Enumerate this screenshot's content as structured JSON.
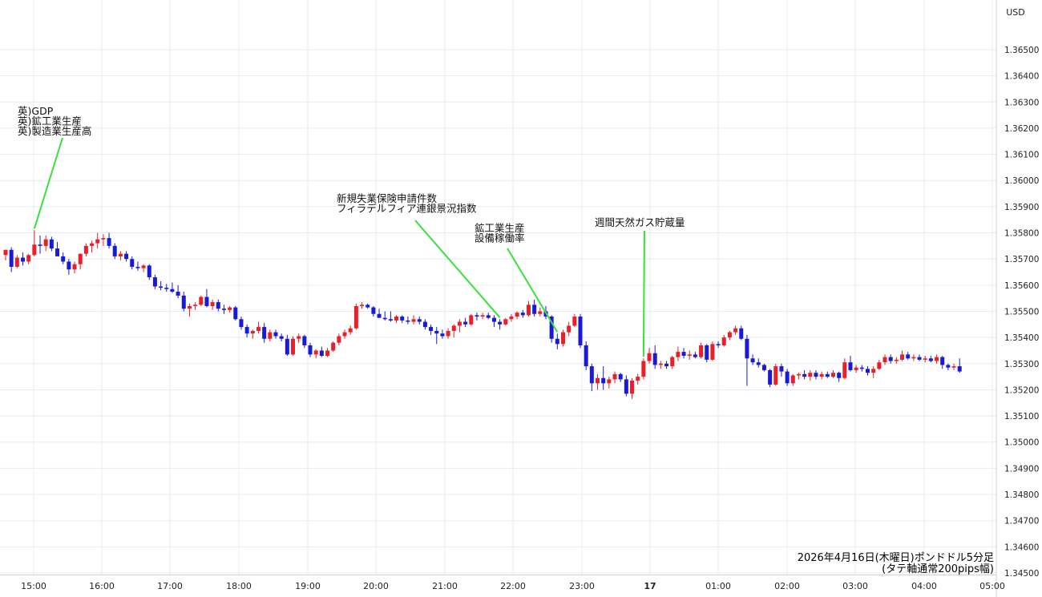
{
  "chart_data": {
    "type": "candlestick",
    "currency_label": "USD",
    "caption": [
      "2026年4月16日(木曜日)ポンドドル5分足",
      "(タテ軸通常200pips幅)"
    ],
    "ylim": [
      1.345,
      1.3665
    ],
    "y_ticks": [
      "1.36500",
      "1.36400",
      "1.36300",
      "1.36200",
      "1.36100",
      "1.36000",
      "1.35900",
      "1.35800",
      "1.35700",
      "1.35600",
      "1.35500",
      "1.35400",
      "1.35300",
      "1.35200",
      "1.35100",
      "1.35000",
      "1.34900",
      "1.34800",
      "1.34700",
      "1.34600",
      "1.34500"
    ],
    "x_ticks": [
      "15:00",
      "16:00",
      "17:00",
      "18:00",
      "19:00",
      "20:00",
      "21:00",
      "22:00",
      "23:00",
      "17",
      "01:00",
      "02:00",
      "03:00",
      "04:00",
      "05:00"
    ],
    "up_color": "#e8202a",
    "down_color": "#1a1ad6",
    "annotation_color": "#3be03b",
    "candles": [
      {
        "o": 1.35715,
        "h": 1.35735,
        "l": 1.35695,
        "c": 1.35735
      },
      {
        "o": 1.35735,
        "h": 1.35745,
        "l": 1.3565,
        "c": 1.3567
      },
      {
        "o": 1.3567,
        "h": 1.35715,
        "l": 1.35665,
        "c": 1.35705
      },
      {
        "o": 1.35705,
        "h": 1.35725,
        "l": 1.35675,
        "c": 1.3569
      },
      {
        "o": 1.3569,
        "h": 1.3572,
        "l": 1.3568,
        "c": 1.35715
      },
      {
        "o": 1.35715,
        "h": 1.3581,
        "l": 1.3571,
        "c": 1.35755
      },
      {
        "o": 1.35755,
        "h": 1.3579,
        "l": 1.3572,
        "c": 1.3575
      },
      {
        "o": 1.3575,
        "h": 1.3579,
        "l": 1.3573,
        "c": 1.35775
      },
      {
        "o": 1.35775,
        "h": 1.35785,
        "l": 1.3573,
        "c": 1.3574
      },
      {
        "o": 1.3574,
        "h": 1.35765,
        "l": 1.3572,
        "c": 1.3571
      },
      {
        "o": 1.3571,
        "h": 1.35725,
        "l": 1.3568,
        "c": 1.3569
      },
      {
        "o": 1.3569,
        "h": 1.357,
        "l": 1.3564,
        "c": 1.3566
      },
      {
        "o": 1.3566,
        "h": 1.3569,
        "l": 1.35645,
        "c": 1.3568
      },
      {
        "o": 1.3568,
        "h": 1.3572,
        "l": 1.3566,
        "c": 1.3572
      },
      {
        "o": 1.3572,
        "h": 1.3576,
        "l": 1.3571,
        "c": 1.3575
      },
      {
        "o": 1.3575,
        "h": 1.3577,
        "l": 1.35725,
        "c": 1.3576
      },
      {
        "o": 1.3576,
        "h": 1.358,
        "l": 1.3574,
        "c": 1.35775
      },
      {
        "o": 1.35775,
        "h": 1.35795,
        "l": 1.3575,
        "c": 1.3578
      },
      {
        "o": 1.3578,
        "h": 1.358,
        "l": 1.3574,
        "c": 1.3575
      },
      {
        "o": 1.3575,
        "h": 1.3576,
        "l": 1.357,
        "c": 1.3571
      },
      {
        "o": 1.3571,
        "h": 1.3573,
        "l": 1.35695,
        "c": 1.3572
      },
      {
        "o": 1.3572,
        "h": 1.3573,
        "l": 1.3569,
        "c": 1.357
      },
      {
        "o": 1.357,
        "h": 1.3571,
        "l": 1.3566,
        "c": 1.3567
      },
      {
        "o": 1.3567,
        "h": 1.3569,
        "l": 1.35655,
        "c": 1.35665
      },
      {
        "o": 1.35665,
        "h": 1.3568,
        "l": 1.3565,
        "c": 1.35675
      },
      {
        "o": 1.35675,
        "h": 1.3568,
        "l": 1.3562,
        "c": 1.3563
      },
      {
        "o": 1.3563,
        "h": 1.3564,
        "l": 1.35585,
        "c": 1.35595
      },
      {
        "o": 1.35595,
        "h": 1.35615,
        "l": 1.3558,
        "c": 1.3559
      },
      {
        "o": 1.3559,
        "h": 1.35605,
        "l": 1.35575,
        "c": 1.35585
      },
      {
        "o": 1.35585,
        "h": 1.3561,
        "l": 1.3557,
        "c": 1.35575
      },
      {
        "o": 1.35575,
        "h": 1.356,
        "l": 1.3555,
        "c": 1.3556
      },
      {
        "o": 1.3556,
        "h": 1.35575,
        "l": 1.355,
        "c": 1.3551
      },
      {
        "o": 1.3551,
        "h": 1.3553,
        "l": 1.3548,
        "c": 1.3552
      },
      {
        "o": 1.3552,
        "h": 1.35535,
        "l": 1.35505,
        "c": 1.35525
      },
      {
        "o": 1.35525,
        "h": 1.3556,
        "l": 1.3552,
        "c": 1.35555
      },
      {
        "o": 1.35555,
        "h": 1.35585,
        "l": 1.35515,
        "c": 1.3552
      },
      {
        "o": 1.3552,
        "h": 1.35545,
        "l": 1.35505,
        "c": 1.35535
      },
      {
        "o": 1.35535,
        "h": 1.35545,
        "l": 1.355,
        "c": 1.3551
      },
      {
        "o": 1.3551,
        "h": 1.35525,
        "l": 1.3549,
        "c": 1.35505
      },
      {
        "o": 1.35505,
        "h": 1.3552,
        "l": 1.35495,
        "c": 1.35515
      },
      {
        "o": 1.35515,
        "h": 1.3552,
        "l": 1.35465,
        "c": 1.3547
      },
      {
        "o": 1.3547,
        "h": 1.3548,
        "l": 1.3543,
        "c": 1.3544
      },
      {
        "o": 1.3544,
        "h": 1.3545,
        "l": 1.354,
        "c": 1.35415
      },
      {
        "o": 1.35415,
        "h": 1.3543,
        "l": 1.35395,
        "c": 1.35425
      },
      {
        "o": 1.35425,
        "h": 1.3546,
        "l": 1.35415,
        "c": 1.3544
      },
      {
        "o": 1.3544,
        "h": 1.35455,
        "l": 1.3538,
        "c": 1.35395
      },
      {
        "o": 1.35395,
        "h": 1.3543,
        "l": 1.35385,
        "c": 1.3542
      },
      {
        "o": 1.3542,
        "h": 1.3543,
        "l": 1.35395,
        "c": 1.35405
      },
      {
        "o": 1.35405,
        "h": 1.35415,
        "l": 1.35385,
        "c": 1.35395
      },
      {
        "o": 1.35395,
        "h": 1.3541,
        "l": 1.3533,
        "c": 1.35335
      },
      {
        "o": 1.35335,
        "h": 1.35405,
        "l": 1.3533,
        "c": 1.35395
      },
      {
        "o": 1.35395,
        "h": 1.35415,
        "l": 1.3538,
        "c": 1.35405
      },
      {
        "o": 1.35405,
        "h": 1.3541,
        "l": 1.3536,
        "c": 1.3537
      },
      {
        "o": 1.3537,
        "h": 1.3538,
        "l": 1.35325,
        "c": 1.35335
      },
      {
        "o": 1.35335,
        "h": 1.35355,
        "l": 1.3532,
        "c": 1.3535
      },
      {
        "o": 1.3535,
        "h": 1.35365,
        "l": 1.35325,
        "c": 1.3533
      },
      {
        "o": 1.3533,
        "h": 1.3536,
        "l": 1.35325,
        "c": 1.3535
      },
      {
        "o": 1.3535,
        "h": 1.35385,
        "l": 1.35345,
        "c": 1.3538
      },
      {
        "o": 1.3538,
        "h": 1.35415,
        "l": 1.3537,
        "c": 1.35405
      },
      {
        "o": 1.35405,
        "h": 1.3543,
        "l": 1.35395,
        "c": 1.3542
      },
      {
        "o": 1.3542,
        "h": 1.35445,
        "l": 1.3541,
        "c": 1.35435
      },
      {
        "o": 1.35435,
        "h": 1.3553,
        "l": 1.3543,
        "c": 1.3552
      },
      {
        "o": 1.3552,
        "h": 1.35535,
        "l": 1.3551,
        "c": 1.35525
      },
      {
        "o": 1.35525,
        "h": 1.3553,
        "l": 1.3551,
        "c": 1.35515
      },
      {
        "o": 1.35515,
        "h": 1.3552,
        "l": 1.3548,
        "c": 1.3549
      },
      {
        "o": 1.3549,
        "h": 1.3551,
        "l": 1.35475,
        "c": 1.35475
      },
      {
        "o": 1.35475,
        "h": 1.355,
        "l": 1.35465,
        "c": 1.3547
      },
      {
        "o": 1.3547,
        "h": 1.355,
        "l": 1.3546,
        "c": 1.35465
      },
      {
        "o": 1.35465,
        "h": 1.35485,
        "l": 1.35455,
        "c": 1.3548
      },
      {
        "o": 1.3548,
        "h": 1.35485,
        "l": 1.35455,
        "c": 1.35465
      },
      {
        "o": 1.35465,
        "h": 1.3548,
        "l": 1.3545,
        "c": 1.3546
      },
      {
        "o": 1.3546,
        "h": 1.35485,
        "l": 1.3545,
        "c": 1.3547
      },
      {
        "o": 1.3547,
        "h": 1.3548,
        "l": 1.3545,
        "c": 1.3546
      },
      {
        "o": 1.3546,
        "h": 1.3547,
        "l": 1.3543,
        "c": 1.3544
      },
      {
        "o": 1.3544,
        "h": 1.3545,
        "l": 1.3541,
        "c": 1.35425
      },
      {
        "o": 1.35425,
        "h": 1.3544,
        "l": 1.35375,
        "c": 1.35415
      },
      {
        "o": 1.35415,
        "h": 1.3543,
        "l": 1.35395,
        "c": 1.35405
      },
      {
        "o": 1.35405,
        "h": 1.35435,
        "l": 1.35395,
        "c": 1.35425
      },
      {
        "o": 1.35425,
        "h": 1.3545,
        "l": 1.354,
        "c": 1.35445
      },
      {
        "o": 1.35445,
        "h": 1.3547,
        "l": 1.3542,
        "c": 1.3546
      },
      {
        "o": 1.3546,
        "h": 1.35475,
        "l": 1.3544,
        "c": 1.3545
      },
      {
        "o": 1.3545,
        "h": 1.3549,
        "l": 1.35445,
        "c": 1.35485
      },
      {
        "o": 1.35485,
        "h": 1.35495,
        "l": 1.35465,
        "c": 1.3548
      },
      {
        "o": 1.3548,
        "h": 1.35495,
        "l": 1.3547,
        "c": 1.35485
      },
      {
        "o": 1.35485,
        "h": 1.35495,
        "l": 1.3547,
        "c": 1.35475
      },
      {
        "o": 1.35475,
        "h": 1.35485,
        "l": 1.3544,
        "c": 1.3546
      },
      {
        "o": 1.3546,
        "h": 1.3547,
        "l": 1.3543,
        "c": 1.3545
      },
      {
        "o": 1.3545,
        "h": 1.35475,
        "l": 1.35445,
        "c": 1.3547
      },
      {
        "o": 1.3547,
        "h": 1.3549,
        "l": 1.3546,
        "c": 1.3548
      },
      {
        "o": 1.3548,
        "h": 1.355,
        "l": 1.3547,
        "c": 1.35495
      },
      {
        "o": 1.35495,
        "h": 1.35505,
        "l": 1.35475,
        "c": 1.35485
      },
      {
        "o": 1.35485,
        "h": 1.3554,
        "l": 1.3548,
        "c": 1.35525
      },
      {
        "o": 1.35525,
        "h": 1.35545,
        "l": 1.3548,
        "c": 1.3549
      },
      {
        "o": 1.3549,
        "h": 1.35515,
        "l": 1.3548,
        "c": 1.355
      },
      {
        "o": 1.355,
        "h": 1.3552,
        "l": 1.3547,
        "c": 1.3548
      },
      {
        "o": 1.3548,
        "h": 1.35485,
        "l": 1.3538,
        "c": 1.35395
      },
      {
        "o": 1.35395,
        "h": 1.35415,
        "l": 1.35355,
        "c": 1.35375
      },
      {
        "o": 1.35375,
        "h": 1.3543,
        "l": 1.35365,
        "c": 1.3542
      },
      {
        "o": 1.3542,
        "h": 1.3546,
        "l": 1.35405,
        "c": 1.35445
      },
      {
        "o": 1.35445,
        "h": 1.3549,
        "l": 1.3544,
        "c": 1.3548
      },
      {
        "o": 1.3548,
        "h": 1.3549,
        "l": 1.3536,
        "c": 1.3537
      },
      {
        "o": 1.3537,
        "h": 1.35385,
        "l": 1.35275,
        "c": 1.3529
      },
      {
        "o": 1.3529,
        "h": 1.353,
        "l": 1.35195,
        "c": 1.35225
      },
      {
        "o": 1.35225,
        "h": 1.3526,
        "l": 1.352,
        "c": 1.35245
      },
      {
        "o": 1.35245,
        "h": 1.3529,
        "l": 1.352,
        "c": 1.35225
      },
      {
        "o": 1.35225,
        "h": 1.3525,
        "l": 1.35205,
        "c": 1.3524
      },
      {
        "o": 1.3524,
        "h": 1.3527,
        "l": 1.35225,
        "c": 1.3526
      },
      {
        "o": 1.3526,
        "h": 1.35265,
        "l": 1.3523,
        "c": 1.3524
      },
      {
        "o": 1.3524,
        "h": 1.35255,
        "l": 1.35175,
        "c": 1.35185
      },
      {
        "o": 1.35185,
        "h": 1.35245,
        "l": 1.35165,
        "c": 1.35235
      },
      {
        "o": 1.35235,
        "h": 1.3526,
        "l": 1.3522,
        "c": 1.3525
      },
      {
        "o": 1.3525,
        "h": 1.3532,
        "l": 1.3524,
        "c": 1.3531
      },
      {
        "o": 1.3531,
        "h": 1.3536,
        "l": 1.353,
        "c": 1.3534
      },
      {
        "o": 1.3534,
        "h": 1.3537,
        "l": 1.3528,
        "c": 1.35295
      },
      {
        "o": 1.35295,
        "h": 1.3531,
        "l": 1.3528,
        "c": 1.353
      },
      {
        "o": 1.353,
        "h": 1.3531,
        "l": 1.3528,
        "c": 1.3529
      },
      {
        "o": 1.3529,
        "h": 1.3533,
        "l": 1.3528,
        "c": 1.35325
      },
      {
        "o": 1.35325,
        "h": 1.35365,
        "l": 1.3531,
        "c": 1.35345
      },
      {
        "o": 1.35345,
        "h": 1.3536,
        "l": 1.3532,
        "c": 1.3533
      },
      {
        "o": 1.3533,
        "h": 1.3535,
        "l": 1.35315,
        "c": 1.35335
      },
      {
        "o": 1.35335,
        "h": 1.35345,
        "l": 1.3532,
        "c": 1.35325
      },
      {
        "o": 1.35325,
        "h": 1.3538,
        "l": 1.3532,
        "c": 1.3537
      },
      {
        "o": 1.3537,
        "h": 1.35375,
        "l": 1.35305,
        "c": 1.35315
      },
      {
        "o": 1.35315,
        "h": 1.35385,
        "l": 1.3531,
        "c": 1.35375
      },
      {
        "o": 1.35375,
        "h": 1.35385,
        "l": 1.3536,
        "c": 1.3537
      },
      {
        "o": 1.3537,
        "h": 1.3541,
        "l": 1.35365,
        "c": 1.354
      },
      {
        "o": 1.354,
        "h": 1.35425,
        "l": 1.3539,
        "c": 1.3542
      },
      {
        "o": 1.3542,
        "h": 1.35445,
        "l": 1.3541,
        "c": 1.35435
      },
      {
        "o": 1.35435,
        "h": 1.35445,
        "l": 1.3539,
        "c": 1.35395
      },
      {
        "o": 1.35395,
        "h": 1.3541,
        "l": 1.35215,
        "c": 1.3532
      },
      {
        "o": 1.3532,
        "h": 1.35335,
        "l": 1.35295,
        "c": 1.35305
      },
      {
        "o": 1.35305,
        "h": 1.3532,
        "l": 1.35285,
        "c": 1.35295
      },
      {
        "o": 1.35295,
        "h": 1.353,
        "l": 1.3527,
        "c": 1.35275
      },
      {
        "o": 1.35275,
        "h": 1.3528,
        "l": 1.3521,
        "c": 1.3522
      },
      {
        "o": 1.3522,
        "h": 1.353,
        "l": 1.35215,
        "c": 1.3529
      },
      {
        "o": 1.3529,
        "h": 1.353,
        "l": 1.3525,
        "c": 1.3527
      },
      {
        "o": 1.3527,
        "h": 1.3528,
        "l": 1.35215,
        "c": 1.35225
      },
      {
        "o": 1.35225,
        "h": 1.3526,
        "l": 1.35215,
        "c": 1.35255
      },
      {
        "o": 1.35255,
        "h": 1.35265,
        "l": 1.3524,
        "c": 1.3526
      },
      {
        "o": 1.3526,
        "h": 1.35275,
        "l": 1.3524,
        "c": 1.3525
      },
      {
        "o": 1.3525,
        "h": 1.35275,
        "l": 1.35235,
        "c": 1.35265
      },
      {
        "o": 1.35265,
        "h": 1.35275,
        "l": 1.3524,
        "c": 1.3525
      },
      {
        "o": 1.3525,
        "h": 1.3527,
        "l": 1.3524,
        "c": 1.3526
      },
      {
        "o": 1.3526,
        "h": 1.3527,
        "l": 1.35245,
        "c": 1.3525
      },
      {
        "o": 1.3525,
        "h": 1.35275,
        "l": 1.35245,
        "c": 1.35265
      },
      {
        "o": 1.35265,
        "h": 1.3527,
        "l": 1.3523,
        "c": 1.35245
      },
      {
        "o": 1.35245,
        "h": 1.3532,
        "l": 1.3524,
        "c": 1.35305
      },
      {
        "o": 1.35305,
        "h": 1.3533,
        "l": 1.3527,
        "c": 1.35275
      },
      {
        "o": 1.35275,
        "h": 1.35295,
        "l": 1.35265,
        "c": 1.35285
      },
      {
        "o": 1.35285,
        "h": 1.35295,
        "l": 1.3527,
        "c": 1.3528
      },
      {
        "o": 1.3528,
        "h": 1.3529,
        "l": 1.35255,
        "c": 1.35265
      },
      {
        "o": 1.35265,
        "h": 1.3529,
        "l": 1.35245,
        "c": 1.3528
      },
      {
        "o": 1.3528,
        "h": 1.35315,
        "l": 1.35275,
        "c": 1.35305
      },
      {
        "o": 1.35305,
        "h": 1.35335,
        "l": 1.35295,
        "c": 1.35325
      },
      {
        "o": 1.35325,
        "h": 1.35335,
        "l": 1.353,
        "c": 1.3531
      },
      {
        "o": 1.3531,
        "h": 1.35325,
        "l": 1.353,
        "c": 1.35315
      },
      {
        "o": 1.35315,
        "h": 1.3535,
        "l": 1.3531,
        "c": 1.35335
      },
      {
        "o": 1.35335,
        "h": 1.35345,
        "l": 1.35315,
        "c": 1.3532
      },
      {
        "o": 1.3532,
        "h": 1.35335,
        "l": 1.3531,
        "c": 1.35325
      },
      {
        "o": 1.35325,
        "h": 1.35335,
        "l": 1.3531,
        "c": 1.35315
      },
      {
        "o": 1.35315,
        "h": 1.3533,
        "l": 1.35305,
        "c": 1.3532
      },
      {
        "o": 1.3532,
        "h": 1.3533,
        "l": 1.35305,
        "c": 1.3531
      },
      {
        "o": 1.3531,
        "h": 1.35335,
        "l": 1.353,
        "c": 1.35325
      },
      {
        "o": 1.35325,
        "h": 1.3533,
        "l": 1.3528,
        "c": 1.35295
      },
      {
        "o": 1.35295,
        "h": 1.353,
        "l": 1.35275,
        "c": 1.35285
      },
      {
        "o": 1.35285,
        "h": 1.353,
        "l": 1.35275,
        "c": 1.3529
      },
      {
        "o": 1.3529,
        "h": 1.3532,
        "l": 1.35265,
        "c": 1.3527
      }
    ],
    "annotations": [
      {
        "lines": [
          "英)GDP",
          "英)鉱工業生産",
          "英)製造業生産高"
        ],
        "candle": 5
      },
      {
        "lines": [
          "新規失業保険申請件数",
          "フィラデルフィア連銀景況指数"
        ],
        "candle": 86
      },
      {
        "lines": [
          "鉱工業生産",
          "設備稼働率"
        ],
        "candle": 96
      },
      {
        "lines": [
          "週間天然ガス貯蔵量"
        ],
        "candle": 111
      }
    ]
  }
}
